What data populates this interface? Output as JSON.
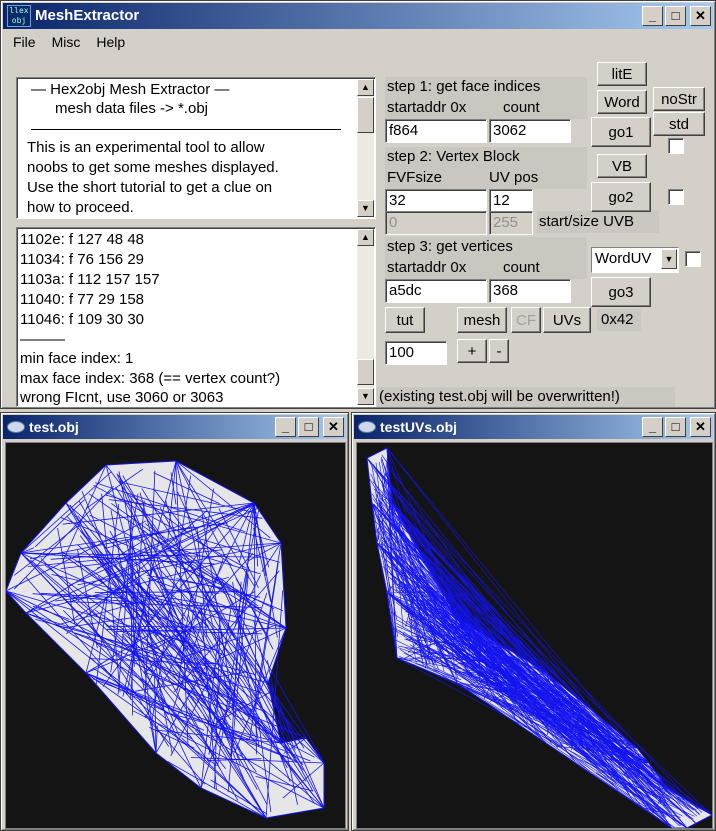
{
  "main_window": {
    "title": "MeshExtractor",
    "icon_text": [
      "llex",
      "obj"
    ],
    "controls": {
      "minimize": "_",
      "maximize": "□",
      "close": "✕"
    }
  },
  "menu": [
    "File",
    "Misc",
    "Help"
  ],
  "info": {
    "header_line1": "—   Hex2obj Mesh Extractor   —",
    "header_line2": "mesh data files -> *.obj",
    "description": [
      "This is an experimental tool to allow",
      "noobs to get some meshes displayed.",
      "Use the short tutorial to get a clue on",
      "how to proceed."
    ]
  },
  "log": {
    "lines": [
      "1102e: f  127 48 48",
      "11034: f  76 156 29",
      "1103a: f  112 157 157",
      "11040: f  77 29 158",
      "11046: f  109 30 30"
    ],
    "separator": "———",
    "summary": [
      "min face index: 1",
      "max face index: 368 (== vertex count?)",
      "wrong FIcnt, use 3060 or 3063"
    ]
  },
  "step1": {
    "title": "step 1: get face indices",
    "addr_label": "startaddr 0x",
    "count_label": "count",
    "addr": "f864",
    "count": "3062"
  },
  "step2": {
    "title": "step 2: Vertex Block",
    "fvf_label": "FVFsize",
    "uvpos_label": "UV pos",
    "fvf": "32",
    "uvpos": "12",
    "uvb_start": "0",
    "uvb_size": "255",
    "uvb_label": "start/size UVB"
  },
  "step3": {
    "title": "step 3: get vertices",
    "addr_label": "startaddr 0x",
    "count_label": "count",
    "addr": "a5dc",
    "count": "368",
    "combo_value": "WordUV"
  },
  "buttons": {
    "litE": "litE",
    "word": "Word",
    "nostr": "noStr",
    "go1": "go1",
    "std": "std",
    "vb": "VB",
    "go2": "go2",
    "go3": "go3",
    "tut": "tut",
    "mesh": "mesh",
    "cf": "CF",
    "uvs": "UVs",
    "hex": "0x42",
    "plus": "+",
    "minus": "-"
  },
  "zoom_value": "100",
  "warning": "(existing test.obj will be overwritten!)",
  "viewer1": {
    "title": "test.obj"
  },
  "viewer2": {
    "title": "testUVs.obj"
  },
  "colors": {
    "mesh_fill": "#e6e6e6",
    "wire": "#1414ee",
    "viewport_bg": "#141414",
    "title_start": "#0a246a",
    "title_end": "#a6caf0"
  }
}
